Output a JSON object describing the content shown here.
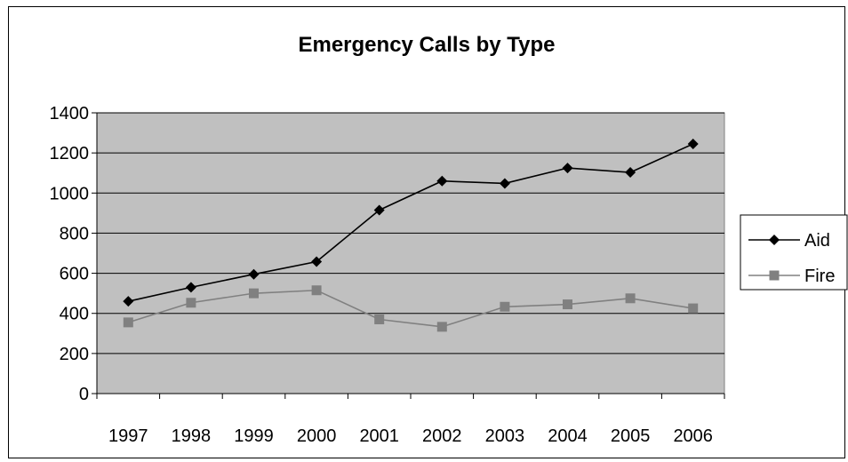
{
  "chart_data": {
    "type": "line",
    "title": "Emergency Calls by Type",
    "xlabel": "",
    "ylabel": "",
    "categories": [
      "1997",
      "1998",
      "1999",
      "2000",
      "2001",
      "2002",
      "2003",
      "2004",
      "2005",
      "2006"
    ],
    "ylim": [
      0,
      1400
    ],
    "yticks": [
      0,
      200,
      400,
      600,
      800,
      1000,
      1200,
      1400
    ],
    "grid": true,
    "legend_position": "right",
    "plot_background": "#c0c0c0",
    "series": [
      {
        "name": "Aid",
        "color": "#000000",
        "marker": "diamond",
        "values": [
          460,
          530,
          595,
          658,
          915,
          1060,
          1048,
          1125,
          1103,
          1245
        ]
      },
      {
        "name": "Fire",
        "color": "#808080",
        "marker": "square",
        "values": [
          355,
          453,
          500,
          515,
          370,
          333,
          433,
          445,
          475,
          425
        ]
      }
    ]
  }
}
